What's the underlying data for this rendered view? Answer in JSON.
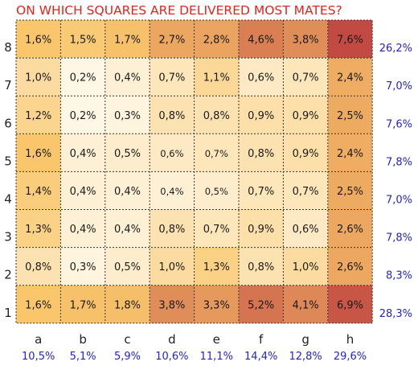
{
  "chart_data": {
    "type": "heatmap",
    "title": "ON WHICH SQUARES ARE DELIVERED MOST MATES?",
    "files": [
      "a",
      "b",
      "c",
      "d",
      "e",
      "f",
      "g",
      "h"
    ],
    "ranks": [
      "8",
      "7",
      "6",
      "5",
      "4",
      "3",
      "2",
      "1"
    ],
    "values": [
      [
        1.6,
        1.5,
        1.7,
        2.7,
        2.8,
        4.6,
        3.8,
        7.6
      ],
      [
        1.0,
        0.2,
        0.4,
        0.7,
        1.1,
        0.6,
        0.7,
        2.4
      ],
      [
        1.2,
        0.2,
        0.3,
        0.8,
        0.8,
        0.9,
        0.9,
        2.5
      ],
      [
        1.6,
        0.4,
        0.5,
        0.6,
        0.7,
        0.8,
        0.9,
        2.4
      ],
      [
        1.4,
        0.4,
        0.4,
        0.4,
        0.5,
        0.7,
        0.7,
        2.5
      ],
      [
        1.3,
        0.4,
        0.4,
        0.8,
        0.7,
        0.9,
        0.6,
        2.6
      ],
      [
        0.8,
        0.3,
        0.5,
        1.0,
        1.3,
        0.8,
        1.0,
        2.6
      ],
      [
        1.6,
        1.7,
        1.8,
        3.8,
        3.3,
        5.2,
        4.1,
        6.9
      ]
    ],
    "labels": [
      [
        "1,6%",
        "1,5%",
        "1,7%",
        "2,7%",
        "2,8%",
        "4,6%",
        "3,8%",
        "7,6%"
      ],
      [
        "1,0%",
        "0,2%",
        "0,4%",
        "0,7%",
        "1,1%",
        "0,6%",
        "0,7%",
        "2,4%"
      ],
      [
        "1,2%",
        "0,2%",
        "0,3%",
        "0,8%",
        "0,8%",
        "0,9%",
        "0,9%",
        "2,5%"
      ],
      [
        "1,6%",
        "0,4%",
        "0,5%",
        "0,6%",
        "0,7%",
        "0,8%",
        "0,9%",
        "2,4%"
      ],
      [
        "1,4%",
        "0,4%",
        "0,4%",
        "0,4%",
        "0,5%",
        "0,7%",
        "0,7%",
        "2,5%"
      ],
      [
        "1,3%",
        "0,4%",
        "0,4%",
        "0,8%",
        "0,7%",
        "0,9%",
        "0,6%",
        "2,6%"
      ],
      [
        "0,8%",
        "0,3%",
        "0,5%",
        "1,0%",
        "1,3%",
        "0,8%",
        "1,0%",
        "2,6%"
      ],
      [
        "1,6%",
        "1,7%",
        "1,8%",
        "3,8%",
        "3,3%",
        "5,2%",
        "4,1%",
        "6,9%"
      ]
    ],
    "rank_totals": [
      "26,2%",
      "7,0%",
      "7,6%",
      "7,8%",
      "7,0%",
      "7,8%",
      "8,3%",
      "28,3%"
    ],
    "file_totals": [
      "10,5%",
      "5,1%",
      "5,9%",
      "10,6%",
      "11,1%",
      "14,4%",
      "12,8%",
      "29,6%"
    ],
    "colors": {
      "title": "#e8231c",
      "totals": "#2424c8",
      "scale_low": "#fff7e6",
      "scale_mid": "#f9c66b",
      "scale_high": "#c24a42"
    }
  }
}
